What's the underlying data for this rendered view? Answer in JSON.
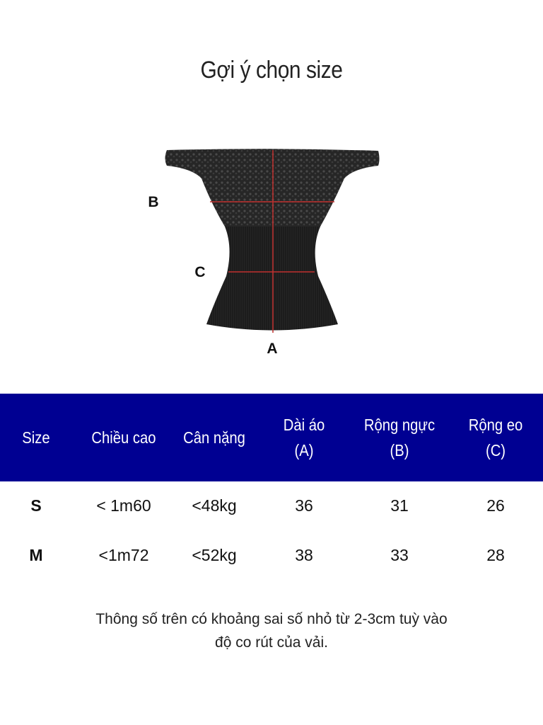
{
  "title": "Gợi ý chọn size",
  "diagram": {
    "labels": {
      "a": "A",
      "b": "B",
      "c": "C"
    },
    "colors": {
      "garment": "#1e1e1e",
      "measure_line": "#c0302f"
    }
  },
  "table": {
    "header_color": "#000092",
    "headers": [
      {
        "line1": "Size",
        "line2": ""
      },
      {
        "line1": "Chiều cao",
        "line2": ""
      },
      {
        "line1": "Cân nặng",
        "line2": ""
      },
      {
        "line1": "Dài áo",
        "line2": "(A)"
      },
      {
        "line1": "Rộng ngực",
        "line2": "(B)"
      },
      {
        "line1": "Rộng eo",
        "line2": "(C)"
      }
    ],
    "rows": [
      [
        "S",
        "< 1m60",
        "<48kg",
        "36",
        "31",
        "26"
      ],
      [
        "M",
        "<1m72",
        "<52kg",
        "38",
        "33",
        "28"
      ]
    ]
  },
  "note": {
    "line1": "Thông số trên có khoảng sai số nhỏ từ 2-3cm tuỳ vào",
    "line2": "độ co rút của vải."
  }
}
